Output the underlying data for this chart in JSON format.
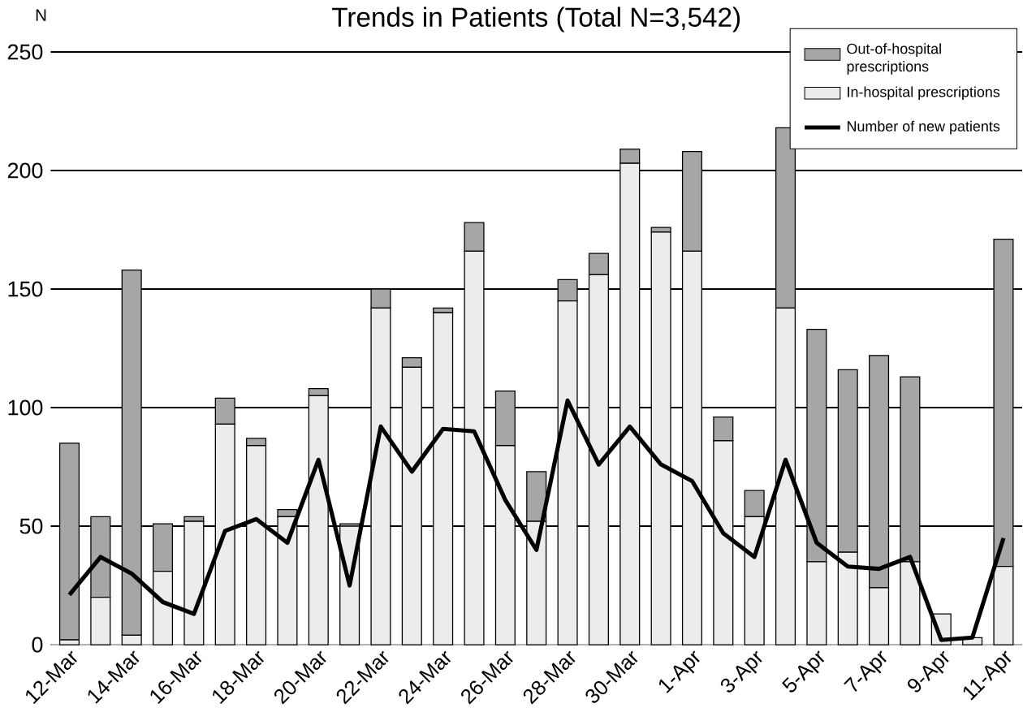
{
  "chart_data": {
    "type": "bar",
    "stacked": true,
    "title": "Trends in Patients (Total N=3,542)",
    "ylabel": "N",
    "categories": [
      "12-Mar",
      null,
      "14-Mar",
      null,
      "16-Mar",
      null,
      "18-Mar",
      null,
      "20-Mar",
      null,
      "22-Mar",
      null,
      "24-Mar",
      null,
      "26-Mar",
      null,
      "28-Mar",
      null,
      "30-Mar",
      null,
      "1-Apr",
      null,
      "3-Apr",
      null,
      "5-Apr",
      null,
      "7-Apr",
      null,
      "9-Apr",
      null,
      "11-Apr"
    ],
    "series": [
      {
        "name": "In-hospital prescriptions",
        "color": "#ececec",
        "values": [
          2,
          20,
          4,
          31,
          52,
          93,
          84,
          54,
          105,
          50,
          142,
          117,
          140,
          166,
          84,
          52,
          145,
          156,
          203,
          174,
          166,
          86,
          54,
          142,
          35,
          39,
          24,
          35,
          13,
          3,
          33
        ]
      },
      {
        "name": "Out-of-hospital prescriptions",
        "color": "#a6a6a6",
        "values": [
          83,
          34,
          154,
          20,
          2,
          11,
          3,
          3,
          3,
          1,
          8,
          4,
          2,
          12,
          23,
          21,
          9,
          9,
          6,
          2,
          42,
          10,
          11,
          76,
          98,
          77,
          98,
          78,
          0,
          0,
          138
        ]
      },
      {
        "name": "Number of new patients",
        "type": "line",
        "color": "#000000",
        "values": [
          21,
          37,
          30,
          18,
          13,
          48,
          53,
          43,
          78,
          25,
          92,
          73,
          91,
          90,
          61,
          40,
          103,
          76,
          92,
          76,
          69,
          47,
          37,
          78,
          43,
          33,
          32,
          37,
          2,
          3,
          45
        ]
      }
    ],
    "ylim": [
      0,
      250
    ],
    "yticks": [
      0,
      50,
      100,
      150,
      200,
      250
    ],
    "grid": "y",
    "legend": "top right"
  }
}
